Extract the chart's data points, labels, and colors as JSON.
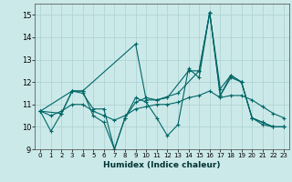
{
  "title": "",
  "xlabel": "Humidex (Indice chaleur)",
  "ylabel": "",
  "xlim": [
    -0.5,
    23.5
  ],
  "ylim": [
    9,
    15.5
  ],
  "yticks": [
    9,
    10,
    11,
    12,
    13,
    14,
    15
  ],
  "xticks": [
    0,
    1,
    2,
    3,
    4,
    5,
    6,
    7,
    8,
    9,
    10,
    11,
    12,
    13,
    14,
    15,
    16,
    17,
    18,
    19,
    20,
    21,
    22,
    23
  ],
  "background_color": "#cce9e9",
  "grid_color": "#b0d4d4",
  "line_color": "#006666",
  "lines": [
    {
      "x": [
        0,
        1,
        2,
        3,
        4,
        5,
        6,
        7,
        8,
        9,
        10,
        11,
        12,
        13,
        14,
        15,
        16,
        17,
        18,
        19,
        20,
        21,
        22,
        23
      ],
      "y": [
        10.7,
        9.8,
        10.6,
        11.6,
        11.6,
        10.5,
        10.2,
        9.0,
        10.4,
        11.3,
        11.1,
        10.4,
        9.6,
        10.1,
        12.6,
        12.2,
        15.1,
        11.4,
        12.3,
        12.0,
        10.4,
        10.2,
        10.0,
        10.0
      ]
    },
    {
      "x": [
        0,
        3,
        4,
        9,
        10,
        11,
        13,
        15,
        16,
        17,
        18,
        19,
        20,
        21,
        22,
        23
      ],
      "y": [
        10.7,
        11.6,
        11.6,
        13.7,
        11.2,
        11.2,
        11.5,
        12.5,
        15.1,
        11.4,
        12.2,
        12.0,
        10.4,
        10.2,
        10.0,
        10.0
      ]
    },
    {
      "x": [
        0,
        2,
        3,
        4,
        5,
        6,
        7,
        8,
        9,
        10,
        11,
        12,
        14,
        15,
        16,
        17,
        18,
        19,
        20,
        21,
        22,
        23
      ],
      "y": [
        10.7,
        10.6,
        11.6,
        11.5,
        10.8,
        10.8,
        9.0,
        10.4,
        11.1,
        11.3,
        11.2,
        11.3,
        12.5,
        12.5,
        15.1,
        11.7,
        12.3,
        12.0,
        10.4,
        10.1,
        10.0,
        10.0
      ]
    },
    {
      "x": [
        0,
        1,
        2,
        3,
        4,
        5,
        6,
        7,
        8,
        9,
        10,
        11,
        12,
        13,
        14,
        15,
        16,
        17,
        18,
        19,
        20,
        21,
        22,
        23
      ],
      "y": [
        10.7,
        10.5,
        10.7,
        11.0,
        11.0,
        10.7,
        10.5,
        10.3,
        10.5,
        10.8,
        10.9,
        11.0,
        11.0,
        11.1,
        11.3,
        11.4,
        11.6,
        11.3,
        11.4,
        11.4,
        11.2,
        10.9,
        10.6,
        10.4
      ]
    }
  ]
}
